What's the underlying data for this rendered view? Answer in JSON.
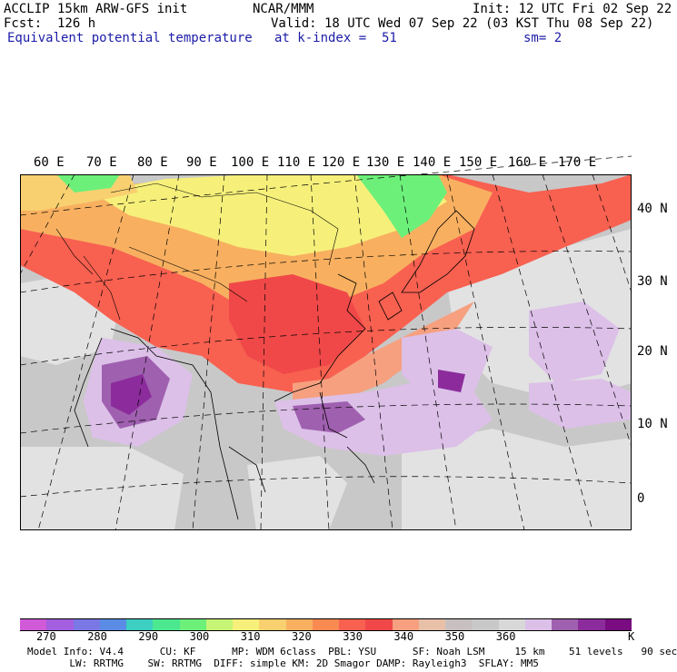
{
  "header": {
    "model": "ACCLIP 15km ARW-GFS init",
    "org": "NCAR/MMM",
    "init": "Init: 12 UTC Fri 02 Sep 22",
    "fcst": "Fcst:  126 h",
    "valid": "Valid: 18 UTC Wed 07 Sep 22 (03 KST Thu 08 Sep 22)",
    "field": "Equivalent potential temperature",
    "level": "at k-index =  51",
    "smooth": "sm= 2"
  },
  "map": {
    "lon_labels": [
      "60 E",
      "70 E",
      "80 E",
      "90 E",
      "100 E",
      "110 E",
      "120 E",
      "130 E",
      "140 E",
      "150 E",
      "160 E",
      "170 E"
    ],
    "lat_labels": [
      "40 N",
      "30 N",
      "20 N",
      "10 N",
      "0"
    ]
  },
  "colorbar": {
    "unit": "K",
    "tick_labels": [
      "270",
      "280",
      "290",
      "300",
      "310",
      "320",
      "330",
      "340",
      "350",
      "360"
    ],
    "colors": [
      "#d05ad8",
      "#a45ee0",
      "#7a78e4",
      "#5a8ce6",
      "#3ccfc2",
      "#4ce890",
      "#6cf07a",
      "#c6f474",
      "#f6f07a",
      "#f8d070",
      "#f8b060",
      "#f88a52",
      "#f86050",
      "#f04848",
      "#f6a080",
      "#e8c0a8",
      "#c8c0c0",
      "#c8c8c8",
      "#d8d8d8",
      "#dcc0e8",
      "#a060b0",
      "#8c2c9c",
      "#780c80"
    ]
  },
  "footer": {
    "line1": "Model Info: V4.4      CU: KF      MP: WDM 6class  PBL: YSU      SF: Noah LSM     15 km    51 levels   90 sec",
    "line2": "       LW: RRTMG    SW: RRTMG  DIFF: simple KM: 2D Smagor DAMP: Rayleigh3  SFLAY: MM5"
  }
}
